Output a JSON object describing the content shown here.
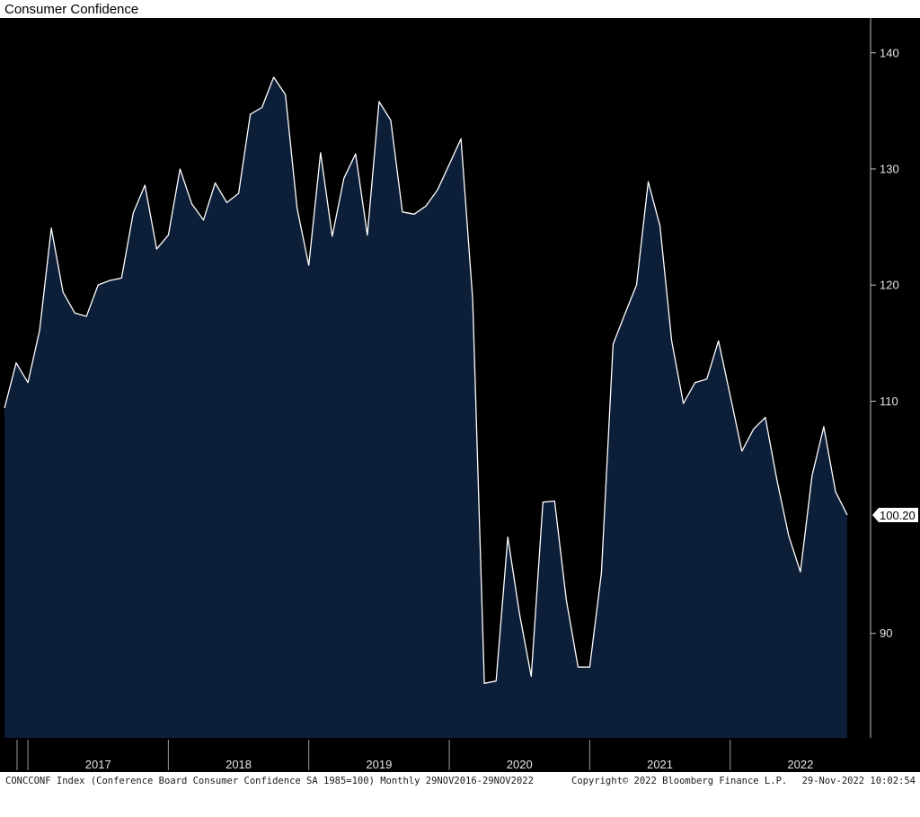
{
  "title": "Consumer Confidence",
  "chart_data": {
    "type": "area",
    "title": "Consumer Confidence",
    "xlabel": "",
    "ylabel": "",
    "ylim": [
      81,
      143
    ],
    "yticks": [
      90,
      110,
      120,
      130,
      140
    ],
    "year_labels": [
      "2017",
      "2018",
      "2019",
      "2020",
      "2021",
      "2022"
    ],
    "last_value_label": "100.20",
    "fill_color": "#0d1e38",
    "line_color": "#ffffff",
    "background": "#000000",
    "series": [
      {
        "x": [
          "2016-11",
          "2016-12",
          "2017-01",
          "2017-02",
          "2017-03",
          "2017-04",
          "2017-05",
          "2017-06",
          "2017-07",
          "2017-08",
          "2017-09",
          "2017-10",
          "2017-11",
          "2017-12",
          "2018-01",
          "2018-02",
          "2018-03",
          "2018-04",
          "2018-05",
          "2018-06",
          "2018-07",
          "2018-08",
          "2018-09",
          "2018-10",
          "2018-11",
          "2018-12",
          "2019-01",
          "2019-02",
          "2019-03",
          "2019-04",
          "2019-05",
          "2019-06",
          "2019-07",
          "2019-08",
          "2019-09",
          "2019-10",
          "2019-11",
          "2019-12",
          "2020-01",
          "2020-02",
          "2020-03",
          "2020-04",
          "2020-05",
          "2020-06",
          "2020-07",
          "2020-08",
          "2020-09",
          "2020-10",
          "2020-11",
          "2020-12",
          "2021-01",
          "2021-02",
          "2021-03",
          "2021-04",
          "2021-05",
          "2021-06",
          "2021-07",
          "2021-08",
          "2021-09",
          "2021-10",
          "2021-11",
          "2021-12",
          "2022-01",
          "2022-02",
          "2022-03",
          "2022-04",
          "2022-05",
          "2022-06",
          "2022-07",
          "2022-08",
          "2022-09",
          "2022-10",
          "2022-11"
        ],
        "values": [
          109.4,
          113.3,
          111.6,
          116.1,
          124.9,
          119.4,
          117.6,
          117.3,
          120.0,
          120.4,
          120.6,
          126.2,
          128.6,
          123.1,
          124.3,
          130.0,
          127.0,
          125.6,
          128.8,
          127.1,
          127.9,
          134.7,
          135.3,
          137.9,
          136.4,
          126.6,
          121.7,
          131.4,
          124.2,
          129.2,
          131.3,
          124.3,
          135.8,
          134.2,
          126.3,
          126.1,
          126.8,
          128.2,
          130.4,
          132.6,
          118.8,
          85.7,
          85.9,
          98.3,
          91.7,
          86.3,
          101.3,
          101.4,
          92.9,
          87.1,
          87.1,
          95.2,
          114.9,
          117.5,
          120.0,
          128.9,
          125.1,
          115.2,
          109.8,
          111.6,
          111.9,
          115.2,
          110.5,
          105.7,
          107.6,
          108.6,
          103.2,
          98.4,
          95.3,
          103.6,
          107.8,
          102.2,
          100.2
        ]
      }
    ]
  },
  "footer": {
    "left": "CONCCONF Index (Conference Board Consumer Confidence SA 1985=100) Monthly 29NOV2016-29NOV2022",
    "mid": "Copyright© 2022 Bloomberg Finance L.P.",
    "right": "29-Nov-2022 10:02:54"
  }
}
